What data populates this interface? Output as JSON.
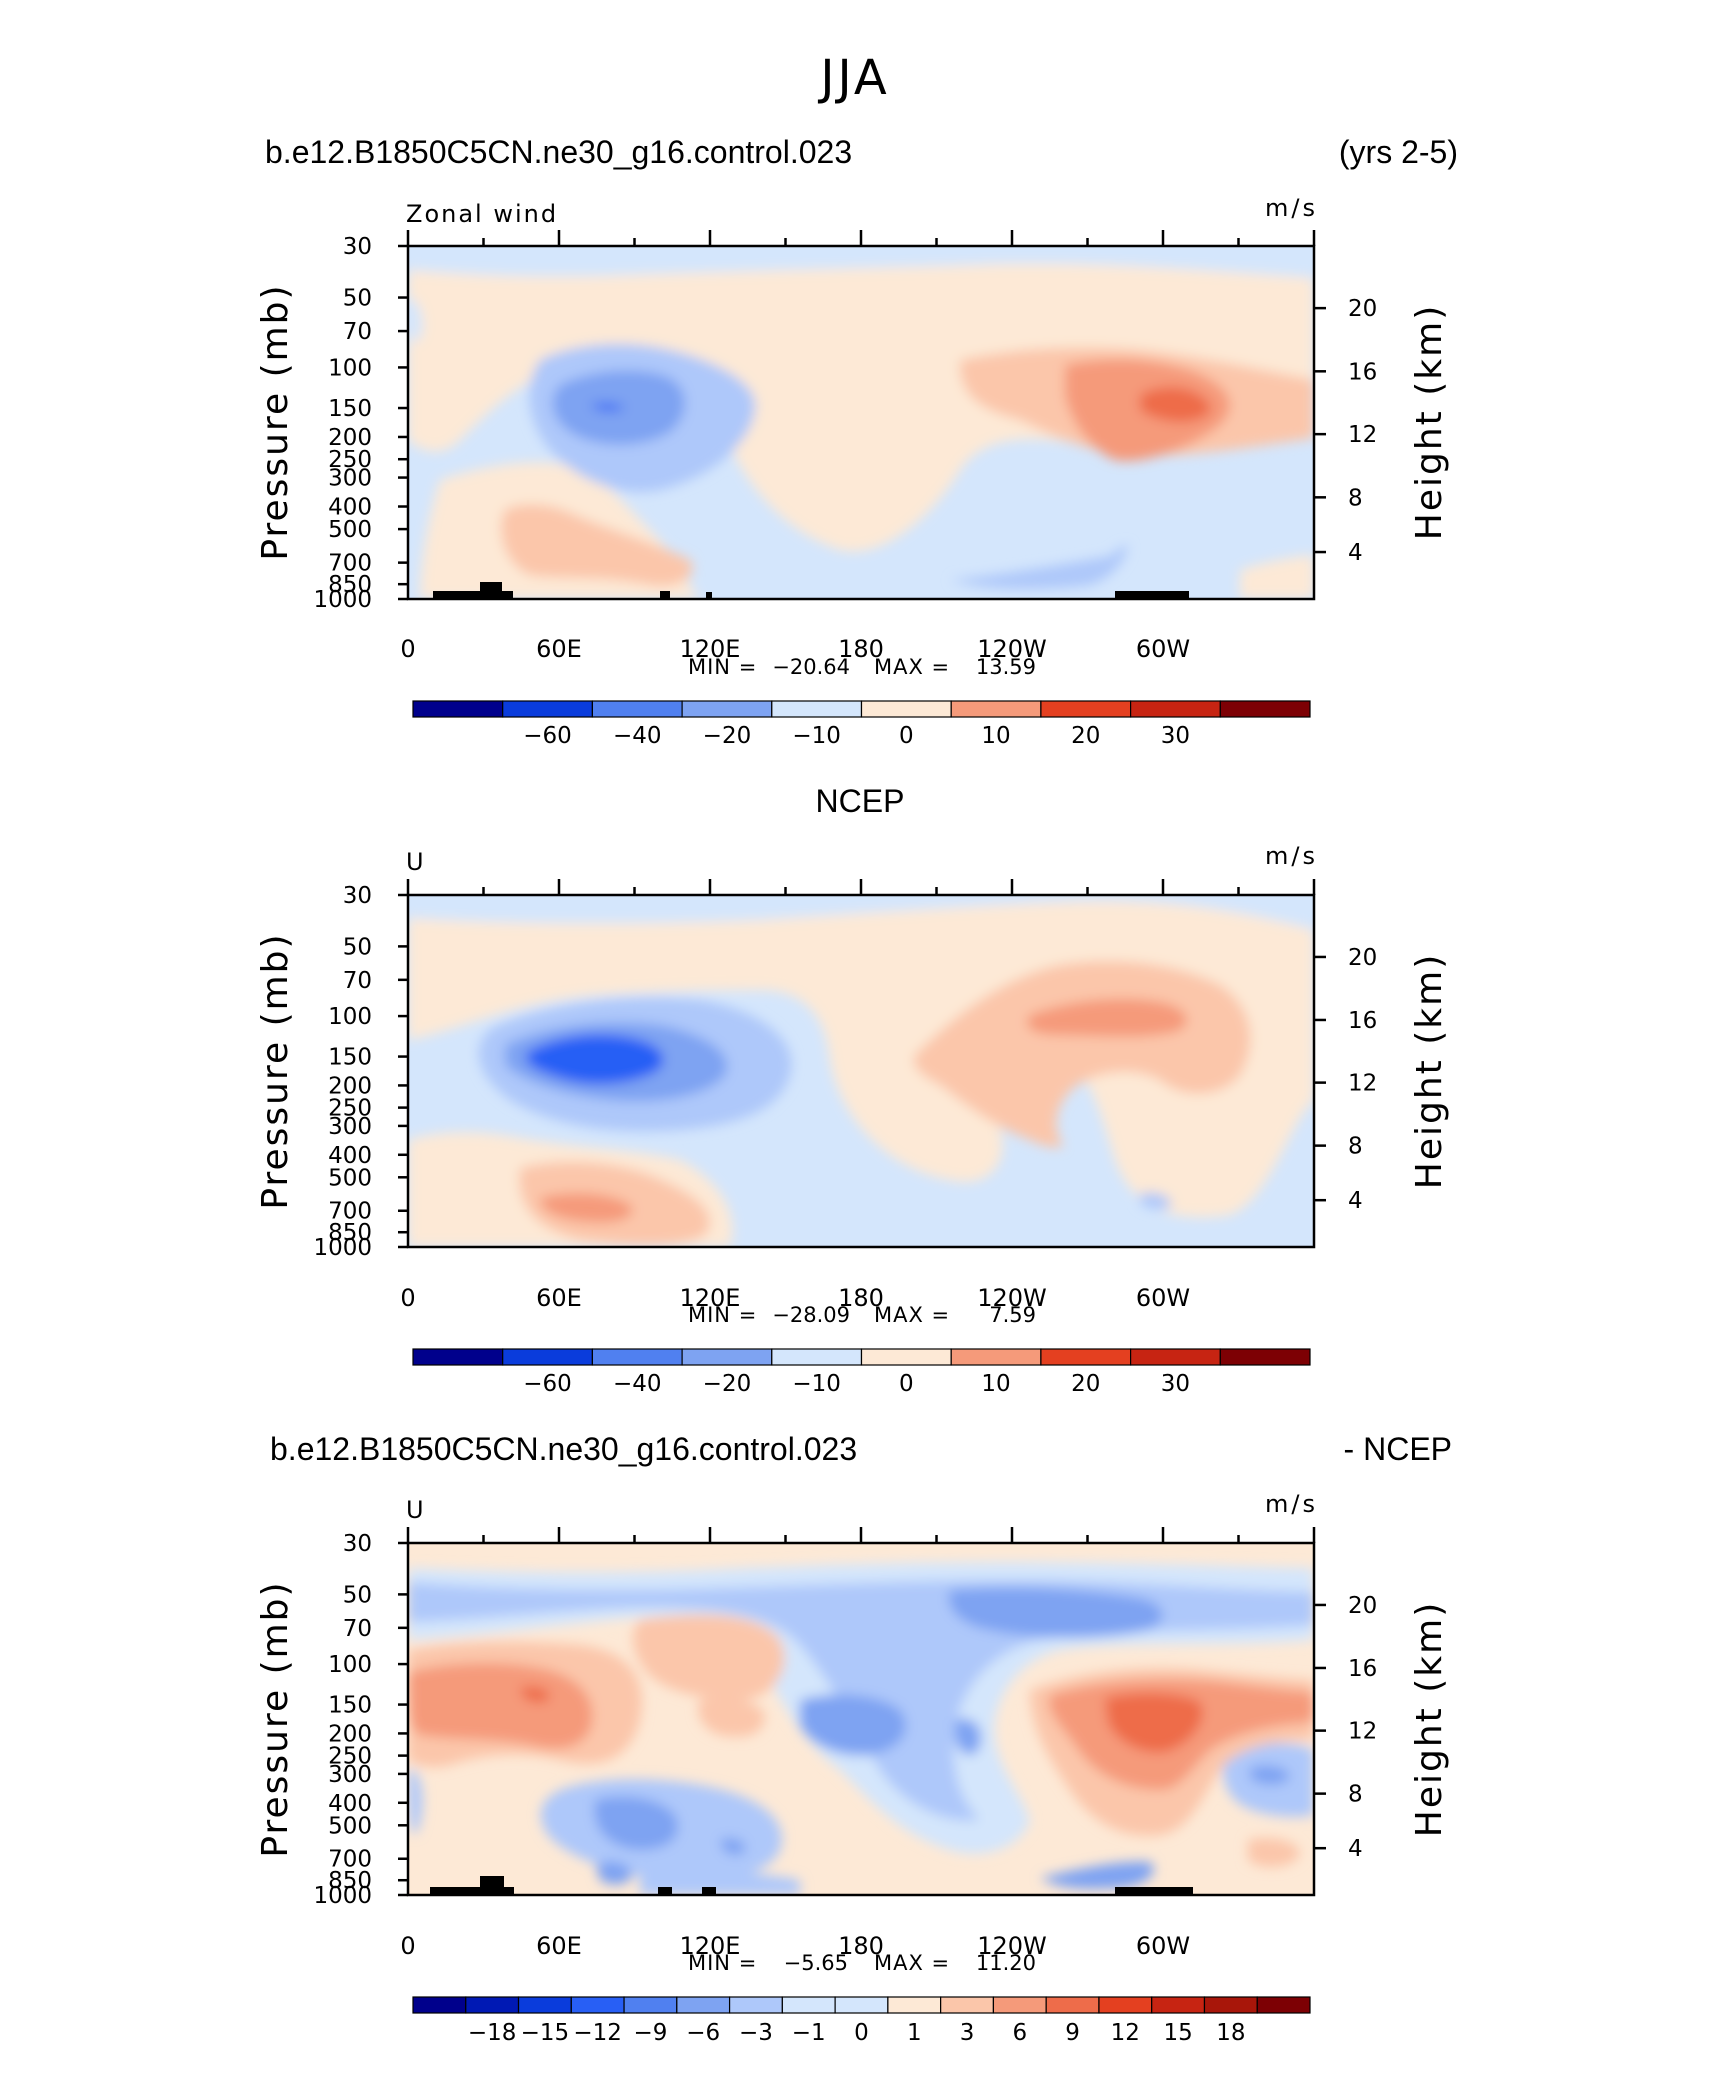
{
  "figure_title": "JJA",
  "colors": {
    "blue_scale": [
      "#00008c",
      "#0019b4",
      "#0a3cdc",
      "#285ff5",
      "#5080f0",
      "#7ea3f2",
      "#aec8fa",
      "#d4e6fc"
    ],
    "red_scale": [
      "#fde9d6",
      "#fbc6aa",
      "#f59a7a",
      "#ee6c4a",
      "#e44020",
      "#c72412",
      "#a8160a",
      "#7d0004"
    ],
    "land": "#000000"
  },
  "chart_data": [
    {
      "type": "heatmap",
      "header_left": "b.e12.B1850C5CN.ne30_g16.control.023",
      "header_right": "(yrs 2-5)",
      "var_label": "Zonal wind",
      "units": "m/s",
      "ylabel": "Pressure  (mb)",
      "y2label": "Height  (km)",
      "x_ticks": [
        "0",
        "60E",
        "120E",
        "180",
        "120W",
        "60W"
      ],
      "y_ticks": [
        "30",
        "50",
        "70",
        "100",
        "150",
        "200",
        "250",
        "300",
        "400",
        "500",
        "700",
        "850",
        "1000"
      ],
      "y2_ticks": [
        "20",
        "16",
        "12",
        "8",
        "4"
      ],
      "min_label": "MIN =",
      "min_value": "−20.64",
      "max_label": "MAX =",
      "max_value": "13.59",
      "colorbar_labels": [
        "−60",
        "−40",
        "−20",
        "−10",
        "0",
        "10",
        "20",
        "30"
      ]
    },
    {
      "type": "heatmap",
      "header_center": "NCEP",
      "var_label": "U",
      "units": "m/s",
      "ylabel": "Pressure  (mb)",
      "y2label": "Height  (km)",
      "x_ticks": [
        "0",
        "60E",
        "120E",
        "180",
        "120W",
        "60W"
      ],
      "y_ticks": [
        "30",
        "50",
        "70",
        "100",
        "150",
        "200",
        "250",
        "300",
        "400",
        "500",
        "700",
        "850",
        "1000"
      ],
      "y2_ticks": [
        "20",
        "16",
        "12",
        "8",
        "4"
      ],
      "min_label": "MIN =",
      "min_value": "−28.09",
      "max_label": "MAX =",
      "max_value": "7.59",
      "colorbar_labels": [
        "−60",
        "−40",
        "−20",
        "−10",
        "0",
        "10",
        "20",
        "30"
      ]
    },
    {
      "type": "heatmap",
      "header_left": "b.e12.B1850C5CN.ne30_g16.control.023",
      "header_right": "- NCEP",
      "var_label": "U",
      "units": "m/s",
      "ylabel": "Pressure  (mb)",
      "y2label": "Height  (km)",
      "x_ticks": [
        "0",
        "60E",
        "120E",
        "180",
        "120W",
        "60W"
      ],
      "y_ticks": [
        "30",
        "50",
        "70",
        "100",
        "150",
        "200",
        "250",
        "300",
        "400",
        "500",
        "700",
        "850",
        "1000"
      ],
      "y2_ticks": [
        "20",
        "16",
        "12",
        "8",
        "4"
      ],
      "min_label": "MIN =",
      "min_value": "−5.65",
      "max_label": "MAX =",
      "max_value": "11.20",
      "colorbar_labels": [
        "−18",
        "−15",
        "−12",
        "−9",
        "−6",
        "−3",
        "−1",
        "0",
        "1",
        "3",
        "6",
        "9",
        "12",
        "15",
        "18"
      ]
    }
  ]
}
